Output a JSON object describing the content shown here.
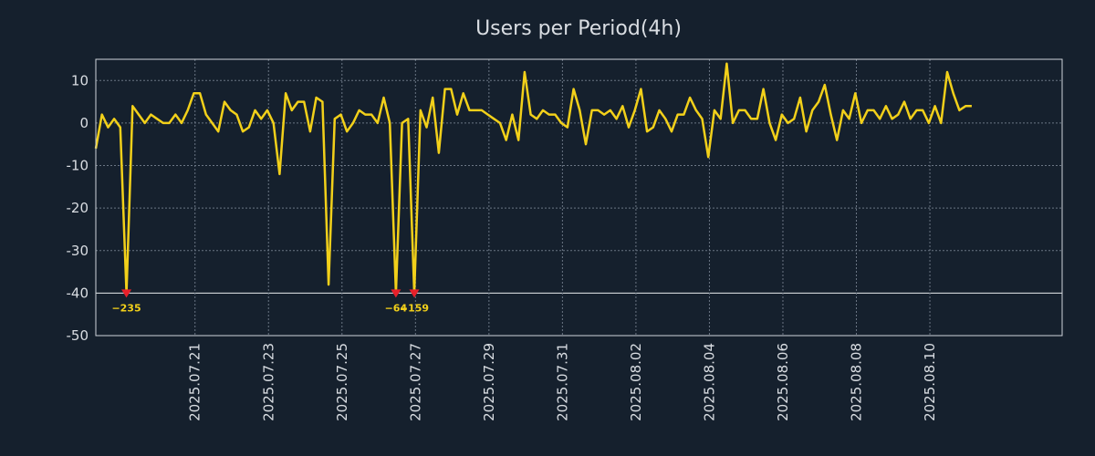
{
  "chart_data": {
    "type": "line",
    "title": "Users per Period(4h)",
    "xlabel": "",
    "ylabel": "",
    "ylim": [
      -50,
      15
    ],
    "yticks": [
      10,
      0,
      -10,
      -20,
      -30,
      -40,
      -50
    ],
    "ytick_labels": [
      "10",
      "0",
      "-10",
      "-20",
      "-30",
      "-40",
      "-50"
    ],
    "clip_value": -40,
    "x_range_days": [
      0,
      26.3
    ],
    "xtick_days": [
      2.7,
      4.7,
      6.7,
      8.7,
      10.7,
      12.7,
      14.7,
      16.7,
      18.7,
      20.7,
      22.7
    ],
    "xtick_labels": [
      "2025.07.21",
      "2025.07.23",
      "2025.07.25",
      "2025.07.27",
      "2025.07.29",
      "2025.07.31",
      "2025.08.02",
      "2025.08.04",
      "2025.08.06",
      "2025.08.08",
      "2025.08.10"
    ],
    "series": [
      {
        "name": "Users",
        "color": "#f2d01a",
        "step_days": 0.1667,
        "values": [
          -6,
          2,
          -1,
          1,
          -1,
          -40,
          4,
          2,
          0,
          2,
          1,
          0,
          0,
          2,
          0,
          3,
          7,
          7,
          2,
          0,
          -2,
          5,
          3,
          2,
          -2,
          -1,
          3,
          1,
          3,
          0,
          -12,
          7,
          3,
          5,
          5,
          -2,
          6,
          5,
          -38,
          1,
          2,
          -2,
          0,
          3,
          2,
          2,
          0,
          6,
          0,
          -40,
          0,
          1,
          -40,
          3,
          -1,
          6,
          -7,
          8,
          8,
          2,
          7,
          3,
          3,
          3,
          2,
          1,
          0,
          -4,
          2,
          -4,
          12,
          2,
          1,
          3,
          2,
          2,
          0,
          -1,
          8,
          3,
          -5,
          3,
          3,
          2,
          3,
          1,
          4,
          -1,
          3,
          8,
          -2,
          -1,
          3,
          1,
          -2,
          2,
          2,
          6,
          3,
          1,
          -8,
          3,
          1,
          14,
          0,
          3,
          3,
          1,
          1,
          8,
          0,
          -4,
          2,
          0,
          1,
          6,
          -2,
          3,
          5,
          9,
          2,
          -4,
          3,
          1,
          7,
          0,
          3,
          3,
          1,
          4,
          1,
          2,
          5,
          1,
          3,
          3,
          0,
          4,
          0,
          12,
          7,
          3,
          4,
          4
        ]
      }
    ],
    "annotations": [
      {
        "label": "−235",
        "day": 0.833,
        "color": "#f2d01a"
      },
      {
        "label": "−64",
        "day": 8.167,
        "color": "#f2d01a"
      },
      {
        "label": "−159",
        "day": 8.667,
        "color": "#f2d01a"
      }
    ],
    "colors": {
      "background": "#15202d",
      "axis_text": "#d9dde2",
      "marker": "#e8202a"
    }
  }
}
